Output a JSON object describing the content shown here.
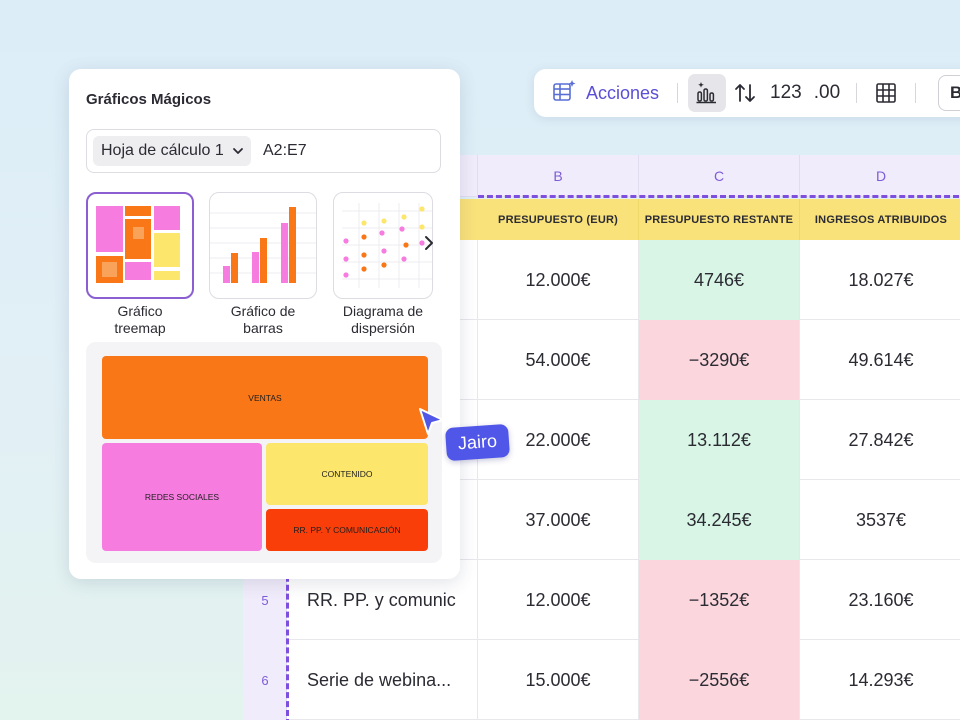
{
  "toolbar": {
    "actions_label": "Acciones",
    "numeric_format_label": "123",
    "decimal_format_label": ".00",
    "bold_label": "B"
  },
  "sheet": {
    "columns": [
      {
        "letter": "B",
        "header": "PRESUPUESTO (EUR)"
      },
      {
        "letter": "C",
        "header": "PRESUPUESTO RESTANTE"
      },
      {
        "letter": "D",
        "header": "INGRESOS ATRIBUIDOS"
      }
    ],
    "rows": [
      {
        "num": "",
        "name": "",
        "budget": "12.000€",
        "remaining": "4746€",
        "status": "pos",
        "revenue": "18.027€"
      },
      {
        "num": "",
        "name": "",
        "budget": "54.000€",
        "remaining": "−3290€",
        "status": "neg",
        "revenue": "49.614€"
      },
      {
        "num": "",
        "name": "",
        "budget": "22.000€",
        "remaining": "13.112€",
        "status": "pos",
        "revenue": "27.842€"
      },
      {
        "num": "",
        "name": "",
        "budget": "37.000€",
        "remaining": "34.245€",
        "status": "pos",
        "revenue": "3537€"
      },
      {
        "num": "5",
        "name": "RR. PP. y comunic",
        "budget": "12.000€",
        "remaining": "−1352€",
        "status": "neg",
        "revenue": "23.160€"
      },
      {
        "num": "6",
        "name": "Serie de webina...",
        "budget": "15.000€",
        "remaining": "−2556€",
        "status": "neg",
        "revenue": "14.293€"
      }
    ]
  },
  "panel": {
    "title": "Gráficos Mágicos",
    "sheet_select": "Hoja de cálculo 1",
    "range": "A2:E7",
    "chart_types": [
      {
        "label": "Gráfico\ntreemap"
      },
      {
        "label": "Gráfico de\nbarras"
      },
      {
        "label": "Diagrama de\ndispersión"
      }
    ],
    "preview_labels": {
      "ventas": "VENTAS",
      "redes": "REDES SOCIALES",
      "contenido": "CONTENIDO",
      "rrpp": "RR. PP. Y COMUNICACIÓN"
    }
  },
  "collaborator": {
    "name": "Jairo"
  },
  "colors": {
    "accent": "#7d4fdc",
    "orange": "#fa7717",
    "pink": "#f77ce0",
    "yellow": "#fce66b",
    "red_orange": "#fa3e0a",
    "collab_blue": "#4f56e8"
  }
}
